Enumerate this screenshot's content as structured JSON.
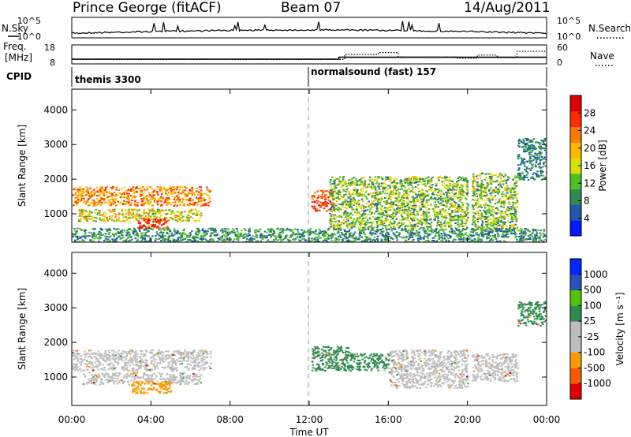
{
  "header": {
    "station": "Prince George (fitACF)",
    "beam": "Beam 07",
    "date": "14/Aug/2011"
  },
  "side_labels": {
    "nsky": "N.Sky",
    "nsearch": "N.Search",
    "freq": "Freq.",
    "freq_unit": "[MHz]",
    "nave": "Nave",
    "cpid": "CPID"
  },
  "cpid_segments": [
    {
      "label": "themis 3300",
      "start_hour": 0
    },
    {
      "label": "normalsound (fast) 157",
      "start_hour": 12
    }
  ],
  "colors": {
    "power": [
      "#0019ff",
      "#1f57ad",
      "#2f8a4e",
      "#4fbf24",
      "#d7e000",
      "#ffb700",
      "#ff7a00",
      "#ff2a00",
      "#e00000"
    ],
    "velocity": [
      "#e00000",
      "#ff5a00",
      "#ff9a00",
      "#bebebe",
      "#bebebe",
      "#2f8a4e",
      "#52c400",
      "#2a52be",
      "#0026ff"
    ],
    "grey": "#bebebe"
  },
  "chart_data": [
    {
      "type": "line",
      "name": "noise-panel",
      "x_range_hours": [
        0,
        24
      ],
      "left_ticks": [
        "10^5",
        "10^0"
      ],
      "right_ticks": [
        "10^5",
        "10^0"
      ],
      "series": [
        {
          "name": "N.Sky",
          "style": "solid"
        },
        {
          "name": "N.Search",
          "style": "dotted"
        }
      ]
    },
    {
      "type": "line",
      "name": "freq-nave-panel",
      "x_range_hours": [
        0,
        24
      ],
      "left_ticks": [
        "18",
        "8"
      ],
      "right_ticks": [
        "60",
        "0"
      ],
      "freq": {
        "x": [
          0,
          12,
          13.5,
          15.5,
          19.5,
          20.5,
          22.5,
          24
        ],
        "y": [
          10.5,
          10.5,
          11.5,
          11.5,
          11.5,
          11.5,
          11.5,
          11.5
        ]
      },
      "nave": {
        "x": [
          0,
          12,
          13.8,
          15.5,
          16.5,
          19.5,
          20.5,
          21.5,
          22.5,
          24
        ],
        "y": [
          14,
          14,
          30,
          36,
          22,
          18,
          28,
          20,
          40,
          40
        ]
      }
    },
    {
      "type": "heatmap",
      "name": "power-panel",
      "ylabel": "Slant Range [km]",
      "yticks": [
        1000,
        2000,
        3000,
        4000
      ],
      "ylim": [
        180,
        4600
      ],
      "x_range_hours": [
        0,
        24
      ],
      "colorbar": {
        "label": "Power [dB]",
        "ticks": [
          "4",
          "8",
          "12",
          "16",
          "20",
          "24",
          "28"
        ],
        "range": [
          0,
          32
        ]
      },
      "regions": [
        {
          "t": [
            0,
            7
          ],
          "r": [
            1250,
            1800
          ],
          "v": [
            16,
            28
          ]
        },
        {
          "t": [
            0.3,
            6.5
          ],
          "r": [
            800,
            1150
          ],
          "v": [
            10,
            24
          ]
        },
        {
          "t": [
            3.3,
            4.8
          ],
          "r": [
            600,
            900
          ],
          "v": [
            24,
            30
          ]
        },
        {
          "t": [
            12.1,
            13.2
          ],
          "r": [
            1100,
            1700
          ],
          "v": [
            22,
            30
          ]
        },
        {
          "t": [
            13,
            20
          ],
          "r": [
            600,
            2100
          ],
          "v": [
            6,
            20
          ]
        },
        {
          "t": [
            20.2,
            22.5
          ],
          "r": [
            500,
            2200
          ],
          "v": [
            6,
            20
          ]
        },
        {
          "t": [
            22.5,
            24
          ],
          "r": [
            2000,
            3200
          ],
          "v": [
            4,
            12
          ]
        },
        {
          "t": [
            0,
            24
          ],
          "r": [
            200,
            600
          ],
          "v": [
            4,
            14
          ]
        }
      ]
    },
    {
      "type": "heatmap",
      "name": "velocity-panel",
      "ylabel": "Slant Range [km]",
      "yticks": [
        1000,
        2000,
        3000,
        4000
      ],
      "ylim": [
        180,
        4600
      ],
      "x_range_hours": [
        0,
        24
      ],
      "xticks": [
        "00:00",
        "04:00",
        "08:00",
        "12:00",
        "16:00",
        "20:00",
        "00:00"
      ],
      "xlabel": "Time UT",
      "colorbar": {
        "label": "Velocity [m s⁻¹]",
        "ticks": [
          "-1000",
          "-500",
          "-100",
          "-25",
          "25",
          "100",
          "500",
          "1000"
        ]
      },
      "regions": [
        {
          "t": [
            0,
            7
          ],
          "r": [
            1200,
            1800
          ],
          "c": "grey"
        },
        {
          "t": [
            0.5,
            6.5
          ],
          "r": [
            800,
            1150
          ],
          "c": "grey"
        },
        {
          "t": [
            3,
            5
          ],
          "r": [
            550,
            900
          ],
          "c": "orange"
        },
        {
          "t": [
            12.1,
            14
          ],
          "r": [
            1200,
            1900
          ],
          "c": "green"
        },
        {
          "t": [
            14,
            16
          ],
          "r": [
            1200,
            1700
          ],
          "c": "green"
        },
        {
          "t": [
            16,
            20
          ],
          "r": [
            700,
            1800
          ],
          "c": "grey"
        },
        {
          "t": [
            20.2,
            22.5
          ],
          "r": [
            900,
            1700
          ],
          "c": "grey"
        },
        {
          "t": [
            22.5,
            24
          ],
          "r": [
            2500,
            3200
          ],
          "c": "green"
        }
      ]
    }
  ]
}
